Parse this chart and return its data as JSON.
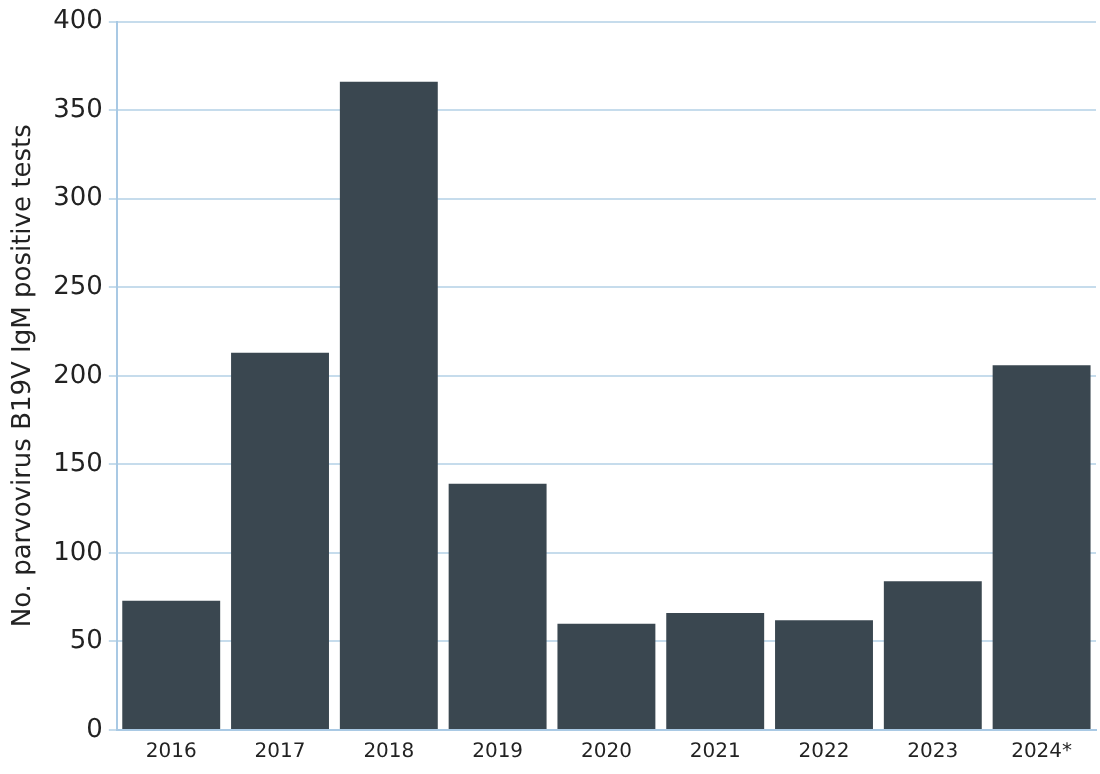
{
  "chart_data": {
    "type": "bar",
    "ylabel": "No. parvovirus B19V IgM positive tests",
    "categories": [
      "2016",
      "2017",
      "2018",
      "2019",
      "2020",
      "2021",
      "2022",
      "2023",
      "2024*"
    ],
    "values": [
      73,
      213,
      366,
      139,
      60,
      66,
      62,
      84,
      206
    ],
    "color": "#3a4750",
    "ylim": [
      0,
      400
    ],
    "yticks": [
      0,
      50,
      100,
      150,
      200,
      250,
      300,
      350,
      400
    ],
    "grid": "y"
  }
}
